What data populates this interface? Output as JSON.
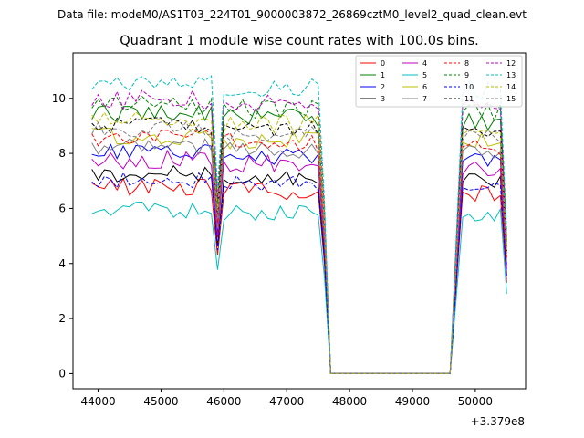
{
  "header": {
    "data_file": "Data file: modeM0/AS1T03_224T01_9000003872_26869cztM0_level2_quad_clean.evt"
  },
  "chart_data": {
    "type": "line",
    "title": "Quadrant 1 module wise count rates with 100.0s bins.",
    "xlabel": "",
    "ylabel": "",
    "x_offset_label": "+3.379e8",
    "xlim": [
      43600,
      50800
    ],
    "ylim": [
      -0.55,
      11.65
    ],
    "x_ticks": [
      44000,
      45000,
      46000,
      47000,
      48000,
      49000,
      50000
    ],
    "x_tick_labels": [
      "44000",
      "45000",
      "46000",
      "47000",
      "48000",
      "49000",
      "50000"
    ],
    "y_ticks": [
      0,
      2,
      4,
      6,
      8,
      10
    ],
    "y_tick_labels": [
      "0",
      "2",
      "4",
      "6",
      "8",
      "10"
    ],
    "legend_position": "top-right",
    "series": [
      {
        "name": "0",
        "color": "#ff0000",
        "dash": "solid",
        "base": 6.6,
        "amp": 0.35
      },
      {
        "name": "1",
        "color": "#008000",
        "dash": "solid",
        "base": 9.3,
        "amp": 0.35
      },
      {
        "name": "2",
        "color": "#0000ff",
        "dash": "solid",
        "base": 7.9,
        "amp": 0.3
      },
      {
        "name": "3",
        "color": "#000000",
        "dash": "solid",
        "base": 7.1,
        "amp": 0.3
      },
      {
        "name": "4",
        "color": "#bf00bf",
        "dash": "solid",
        "base": 7.6,
        "amp": 0.35
      },
      {
        "name": "5",
        "color": "#00bfbf",
        "dash": "solid",
        "base": 5.8,
        "amp": 0.3
      },
      {
        "name": "6",
        "color": "#bfbf00",
        "dash": "solid",
        "base": 8.5,
        "amp": 0.35
      },
      {
        "name": "7",
        "color": "#808080",
        "dash": "solid",
        "base": 8.1,
        "amp": 0.3
      },
      {
        "name": "8",
        "color": "#ff0000",
        "dash": "dashed",
        "base": 8.4,
        "amp": 0.35
      },
      {
        "name": "9",
        "color": "#008000",
        "dash": "dashed",
        "base": 9.6,
        "amp": 0.35
      },
      {
        "name": "10",
        "color": "#0000ff",
        "dash": "dashed",
        "base": 6.9,
        "amp": 0.3
      },
      {
        "name": "11",
        "color": "#000000",
        "dash": "dashed",
        "base": 8.9,
        "amp": 0.3
      },
      {
        "name": "12",
        "color": "#bf00bf",
        "dash": "dashed",
        "base": 9.8,
        "amp": 0.35
      },
      {
        "name": "13",
        "color": "#00bfbf",
        "dash": "dashed",
        "base": 10.4,
        "amp": 0.35
      },
      {
        "name": "14",
        "color": "#bfbf00",
        "dash": "dashed",
        "base": 9.1,
        "amp": 0.35
      },
      {
        "name": "15",
        "color": "#808080",
        "dash": "dashed",
        "base": 8.7,
        "amp": 0.3
      }
    ],
    "segments": [
      {
        "x_start": 43900,
        "x_end": 45800,
        "step": 100
      },
      {
        "x_start": 46000,
        "x_end": 47500,
        "step": 100
      },
      {
        "x_start": 49800,
        "x_end": 50400,
        "step": 100
      }
    ],
    "dips": [
      {
        "x": 45900,
        "value_fraction": 0.65
      },
      {
        "x": 47600,
        "value_fraction": 0.6
      },
      {
        "x": 50500,
        "value_fraction": 0.5
      }
    ],
    "zero_range": [
      47700,
      49600
    ]
  }
}
